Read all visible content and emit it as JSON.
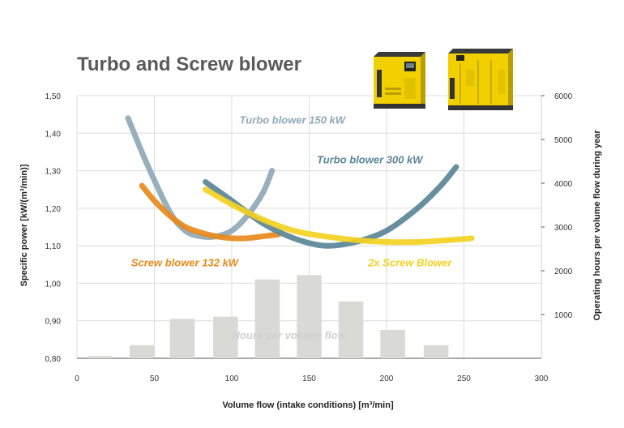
{
  "title": "Turbo and Screw blower",
  "colors": {
    "turbo150": "#8fa9b8",
    "turbo300": "#5b8597",
    "screw132": "#e8891c",
    "screw2x": "#f4d121",
    "hours": "#d9d9d6",
    "hoursLabel": "#d0d0d0"
  },
  "chart_data": {
    "type": "line",
    "title": "Turbo and Screw blower",
    "xlabel": "Volume flow (intake conditions) [m³/min]",
    "ylabel": "Specific power [kW/(m³/min)]",
    "y2label": "Operating hours per volume flow during year",
    "xlim": [
      0,
      300
    ],
    "ylim": [
      0.8,
      1.5
    ],
    "y2lim": [
      0,
      6000
    ],
    "xticks": [
      "0",
      "50",
      "100",
      "150",
      "200",
      "250",
      "300"
    ],
    "yticks": [
      "0,80",
      "0,90",
      "1,00",
      "1,10",
      "1,20",
      "1,30",
      "1,40",
      "1,50"
    ],
    "y2ticks": [
      "1000",
      "2000",
      "3000",
      "4000",
      "5000",
      "6000"
    ],
    "grid": true,
    "series": [
      {
        "name": "Turbo blower 150 kW",
        "key": "turbo150",
        "x": [
          33,
          45,
          60,
          70,
          80,
          90,
          100,
          110,
          120,
          126
        ],
        "y": [
          1.44,
          1.32,
          1.19,
          1.14,
          1.125,
          1.125,
          1.14,
          1.18,
          1.24,
          1.3
        ]
      },
      {
        "name": "Turbo blower 300 kW",
        "key": "turbo300",
        "x": [
          83,
          100,
          120,
          140,
          160,
          180,
          200,
          220,
          235,
          245
        ],
        "y": [
          1.27,
          1.22,
          1.16,
          1.12,
          1.1,
          1.11,
          1.14,
          1.2,
          1.26,
          1.31
        ]
      },
      {
        "name": "Screw blower 132 kW",
        "key": "screw132",
        "x": [
          42,
          50,
          60,
          70,
          80,
          90,
          100,
          110,
          120,
          130
        ],
        "y": [
          1.26,
          1.22,
          1.18,
          1.15,
          1.135,
          1.125,
          1.12,
          1.12,
          1.125,
          1.13
        ]
      },
      {
        "name": "2x Screw Blower",
        "key": "screw2x",
        "x": [
          83,
          100,
          120,
          140,
          160,
          180,
          200,
          220,
          240,
          255
        ],
        "y": [
          1.25,
          1.21,
          1.17,
          1.14,
          1.125,
          1.115,
          1.11,
          1.11,
          1.115,
          1.12
        ]
      }
    ],
    "hours_series": {
      "name": "Hours per volume flow",
      "x": [
        15,
        42,
        68,
        96,
        123,
        150,
        177,
        204,
        232
      ],
      "values": [
        50,
        300,
        900,
        950,
        1800,
        1900,
        1300,
        650,
        300
      ]
    }
  }
}
